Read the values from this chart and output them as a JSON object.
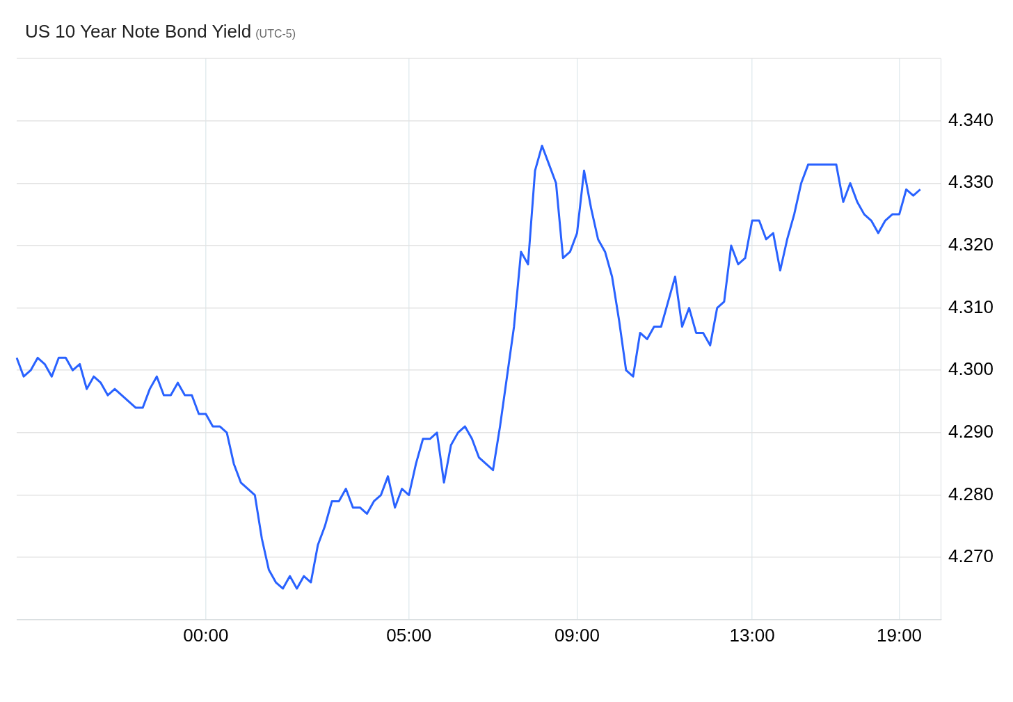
{
  "chart_data": {
    "type": "line",
    "title": "US 10 Year Note Bond Yield",
    "subtitle": "(UTC-5)",
    "categories": [
      null,
      null,
      null,
      null,
      null,
      null,
      null,
      null,
      null,
      null,
      null,
      null,
      null,
      null,
      null,
      null,
      null,
      null,
      null,
      null,
      null,
      null,
      null,
      null,
      null,
      null,
      null,
      "00:00",
      null,
      null,
      null,
      null,
      null,
      null,
      null,
      null,
      null,
      null,
      null,
      null,
      null,
      null,
      null,
      null,
      null,
      null,
      null,
      null,
      null,
      null,
      null,
      null,
      null,
      null,
      null,
      null,
      "05:00",
      null,
      null,
      null,
      null,
      null,
      null,
      null,
      null,
      null,
      null,
      null,
      null,
      null,
      null,
      null,
      null,
      null,
      null,
      null,
      null,
      null,
      null,
      null,
      "09:00",
      null,
      null,
      null,
      null,
      null,
      null,
      null,
      null,
      null,
      null,
      null,
      null,
      null,
      null,
      null,
      null,
      null,
      null,
      null,
      null,
      null,
      null,
      null,
      null,
      "13:00",
      null,
      null,
      null,
      null,
      null,
      null,
      null,
      null,
      null,
      null,
      null,
      null,
      null,
      null,
      null,
      null,
      null,
      null,
      null,
      null,
      "19:00",
      null,
      null,
      null,
      null,
      null,
      null
    ],
    "series": [
      {
        "color": "#2962ff",
        "values": [
          4.302,
          4.299,
          4.3,
          4.302,
          4.301,
          4.299,
          4.302,
          4.302,
          4.3,
          4.301,
          4.297,
          4.299,
          4.298,
          4.296,
          4.297,
          4.296,
          4.295,
          4.294,
          4.294,
          4.297,
          4.299,
          4.296,
          4.296,
          4.298,
          4.296,
          4.296,
          4.293,
          4.293,
          4.291,
          4.291,
          4.29,
          4.285,
          4.282,
          4.281,
          4.28,
          4.273,
          4.268,
          4.266,
          4.265,
          4.267,
          4.265,
          4.267,
          4.266,
          4.272,
          4.275,
          4.279,
          4.279,
          4.281,
          4.278,
          4.278,
          4.277,
          4.279,
          4.28,
          4.283,
          4.278,
          4.281,
          4.28,
          4.285,
          4.289,
          4.289,
          4.29,
          4.282,
          4.288,
          4.29,
          4.291,
          4.289,
          4.286,
          4.285,
          4.284,
          4.291,
          4.299,
          4.307,
          4.319,
          4.317,
          4.332,
          4.336,
          4.333,
          4.33,
          4.318,
          4.319,
          4.322,
          4.332,
          4.326,
          4.321,
          4.319,
          4.315,
          4.308,
          4.3,
          4.299,
          4.306,
          4.305,
          4.307,
          4.307,
          4.311,
          4.315,
          4.307,
          4.31,
          4.306,
          4.306,
          4.304,
          4.31,
          4.311,
          4.32,
          4.317,
          4.318,
          4.324,
          4.324,
          4.321,
          4.322,
          4.316,
          4.321,
          4.325,
          4.33,
          4.333,
          4.333,
          4.333,
          4.333,
          4.333,
          4.327,
          4.33,
          4.327,
          4.325,
          4.324,
          4.322,
          4.324,
          4.325,
          4.325,
          4.329,
          4.328,
          4.329,
          null,
          null,
          null
        ]
      }
    ],
    "ylim": [
      4.26,
      4.35
    ],
    "yticks": [
      {
        "value": 4.26,
        "label": null
      },
      {
        "value": 4.27,
        "label": "4.270"
      },
      {
        "value": 4.28,
        "label": "4.280"
      },
      {
        "value": 4.29,
        "label": "4.290"
      },
      {
        "value": 4.3,
        "label": "4.300"
      },
      {
        "value": 4.31,
        "label": "4.310"
      },
      {
        "value": 4.32,
        "label": "4.320"
      },
      {
        "value": 4.33,
        "label": "4.330"
      },
      {
        "value": 4.34,
        "label": "4.340"
      },
      {
        "value": 4.35,
        "label": null
      }
    ],
    "grid": true,
    "legend": false,
    "marker": "none",
    "line_style": "solid"
  }
}
